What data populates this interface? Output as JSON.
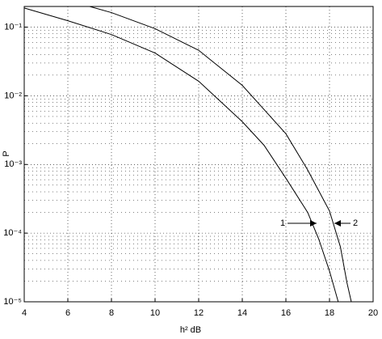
{
  "chart_data": {
    "type": "line",
    "xlabel": "h² dB",
    "ylabel": "P",
    "xlim": [
      4,
      20
    ],
    "xticks": [
      4,
      6,
      8,
      10,
      12,
      14,
      16,
      18,
      20
    ],
    "ylim": [
      1e-05,
      0.2
    ],
    "yscale": "log",
    "yticks": [
      {
        "value": 1e-05,
        "label": "10⁻⁵"
      },
      {
        "value": 0.0001,
        "label": "10⁻⁴"
      },
      {
        "value": 0.001,
        "label": "10⁻³"
      },
      {
        "value": 0.01,
        "label": "10⁻²"
      },
      {
        "value": 0.1,
        "label": "10⁻¹"
      }
    ],
    "grid": true,
    "minor_grid": true,
    "annotations": [
      "1",
      "2"
    ],
    "series": [
      {
        "color": "#000000",
        "x": [
          4,
          6,
          8,
          10,
          12,
          14,
          15,
          16,
          17,
          17.5,
          18,
          18.4
        ],
        "values": [
          0.19,
          0.124,
          0.078,
          0.042,
          0.0163,
          0.0042,
          0.0019,
          0.00063,
          0.0002,
          8.3e-05,
          2.8e-05,
          1e-05
        ]
      },
      {
        "color": "#000000",
        "x": [
          7,
          8,
          10,
          12,
          14,
          16,
          17,
          18,
          18.5,
          18.8,
          19
        ],
        "values": [
          0.2,
          0.163,
          0.095,
          0.046,
          0.0142,
          0.0028,
          0.00083,
          0.00021,
          6.3e-05,
          1.9e-05,
          1e-05
        ]
      }
    ]
  }
}
